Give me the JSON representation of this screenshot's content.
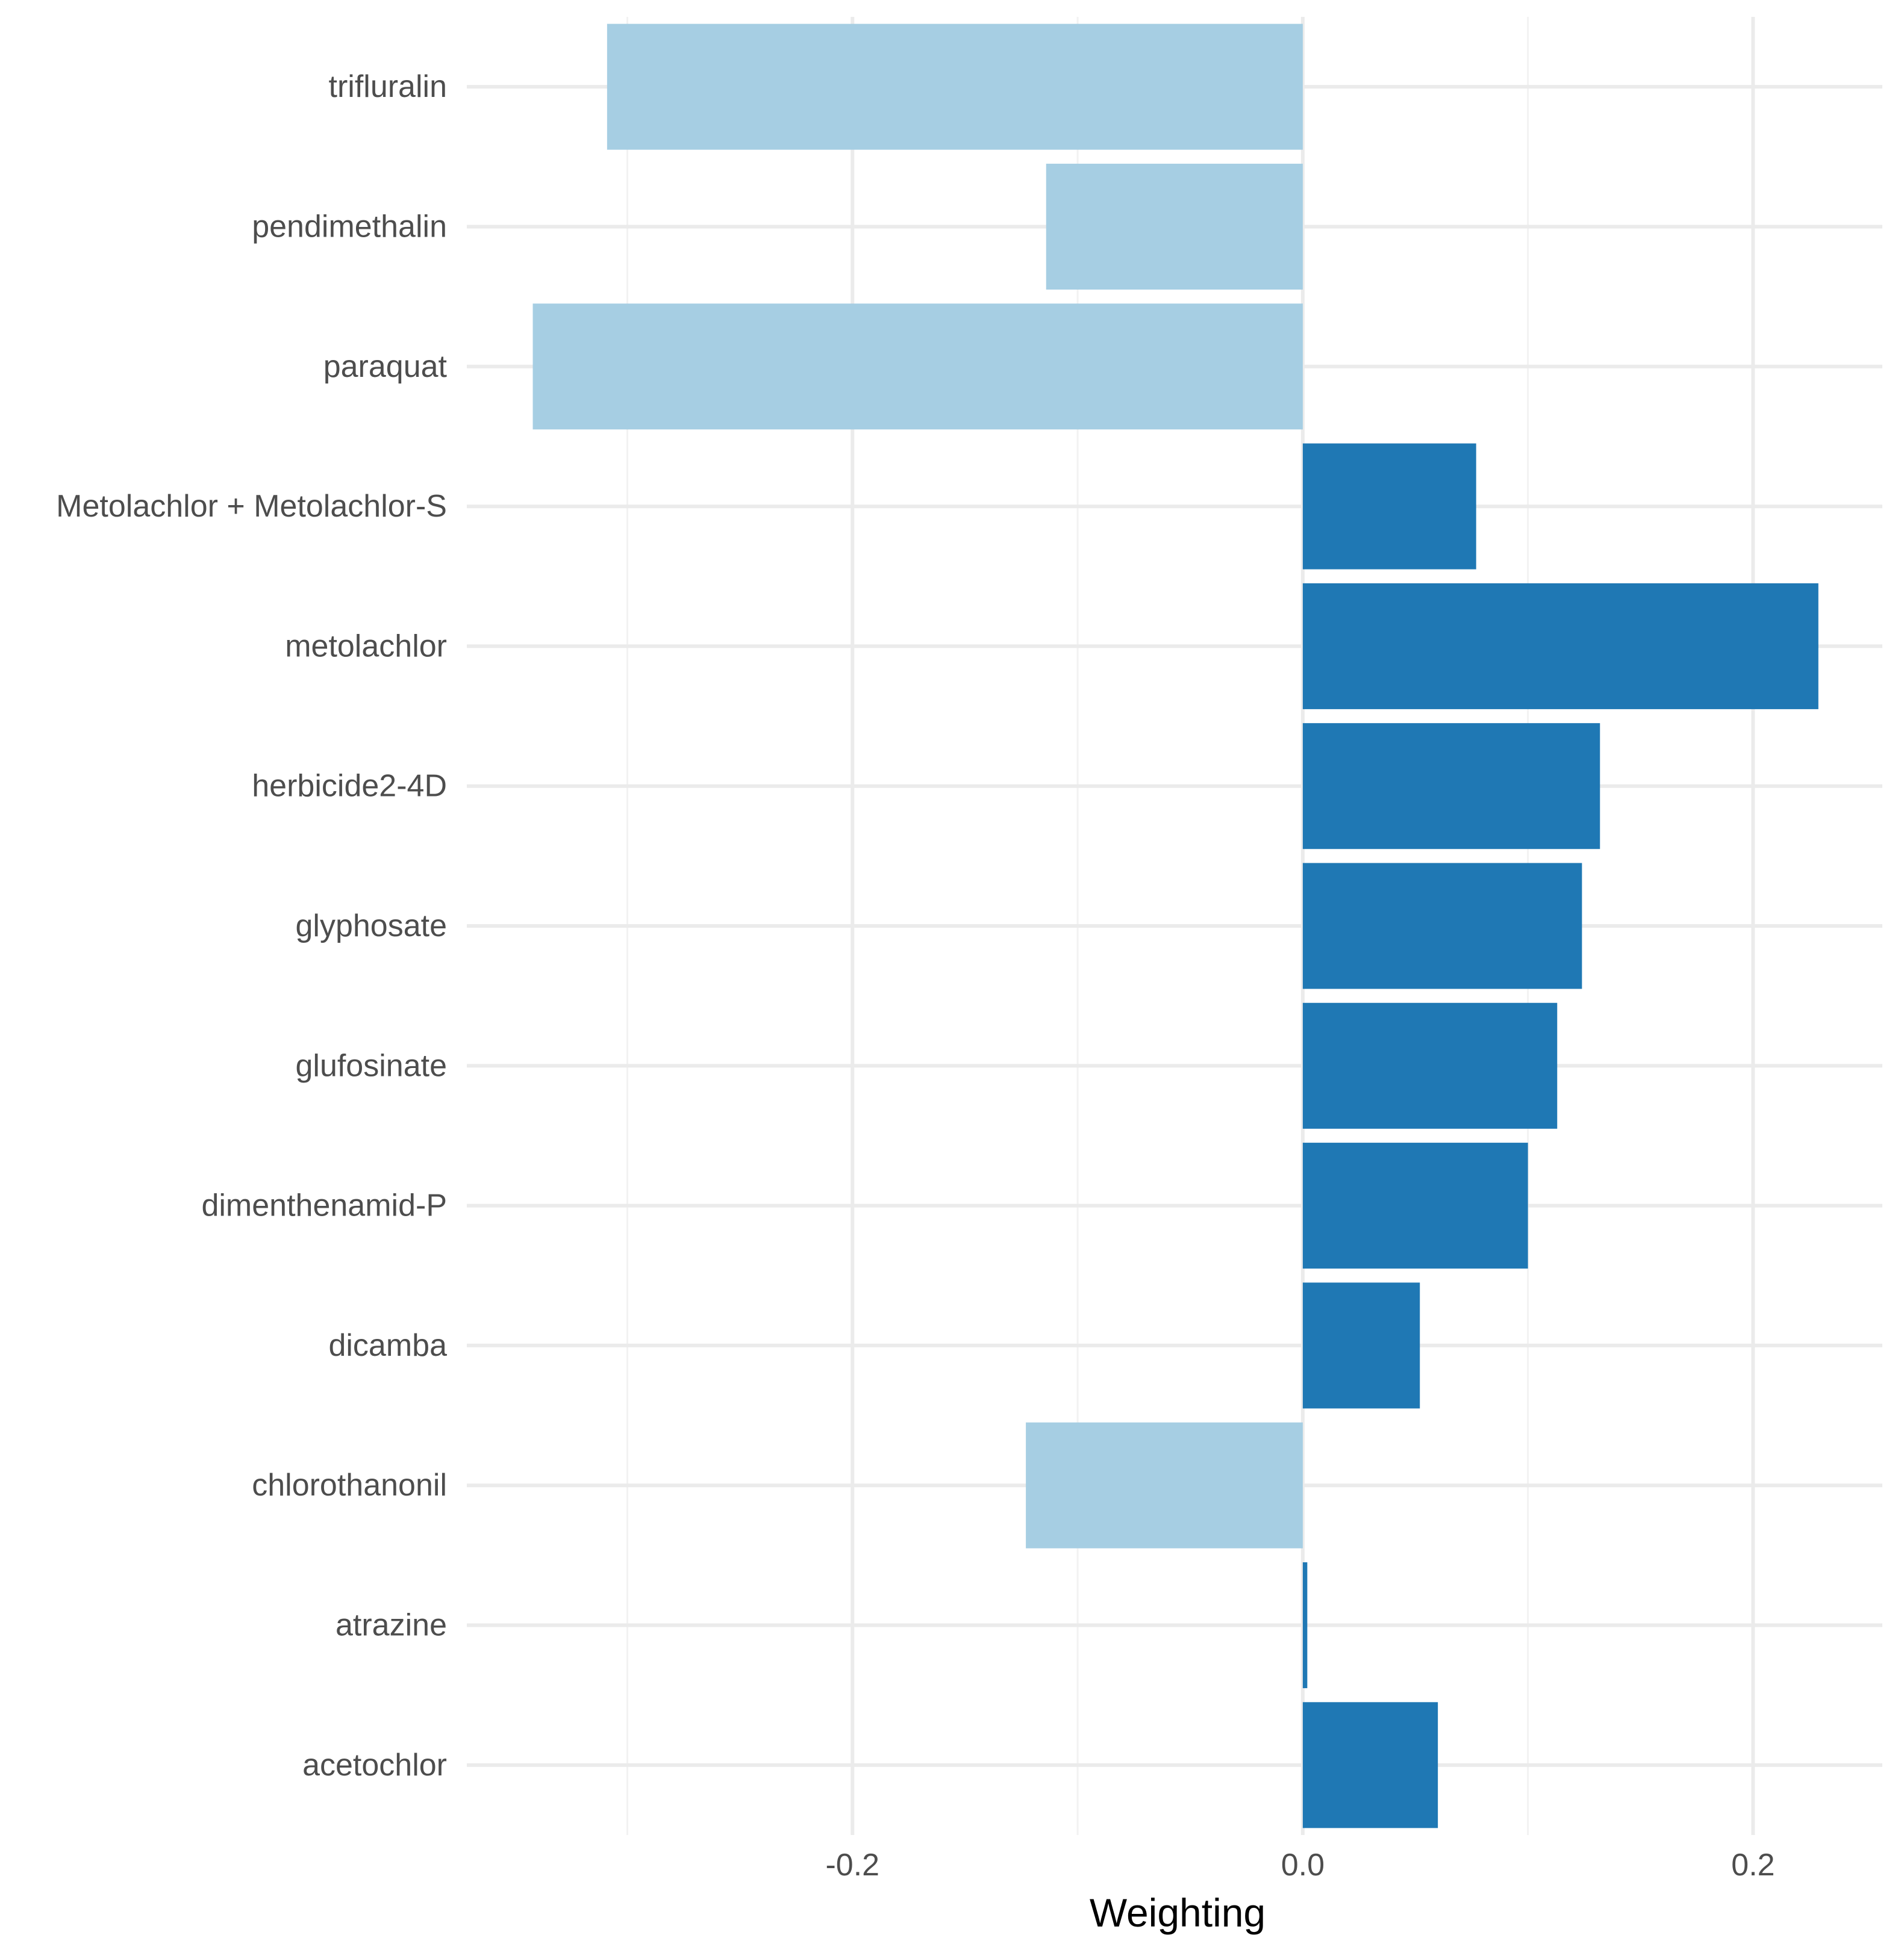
{
  "chart_data": {
    "type": "bar",
    "orientation": "horizontal",
    "title": "",
    "xlabel": "Weighting",
    "ylabel": "",
    "xlim": [
      -0.3713,
      0.2574
    ],
    "x_ticks": [
      -0.2,
      0.0,
      0.2
    ],
    "x_tick_labels": [
      "-0.2",
      "0.0",
      "0.2"
    ],
    "x_minor_ticks": [
      -0.3,
      -0.1,
      0.1
    ],
    "grid": true,
    "legend": "none",
    "categories": [
      "trifluralin",
      "pendimethalin",
      "paraquat",
      "Metolachlor + Metolachlor-S",
      "metolachlor",
      "herbicide2-4D",
      "glyphosate",
      "glufosinate",
      "dimenthenamid-P",
      "dicamba",
      "chlorothanonil",
      "atrazine",
      "acetochlor"
    ],
    "values": [
      -0.309,
      -0.114,
      -0.342,
      0.077,
      0.229,
      0.132,
      0.124,
      0.113,
      0.1,
      0.052,
      -0.123,
      0.002,
      0.06
    ],
    "colors": {
      "positive": "#1f78b4",
      "negative": "#a6cee3"
    }
  }
}
